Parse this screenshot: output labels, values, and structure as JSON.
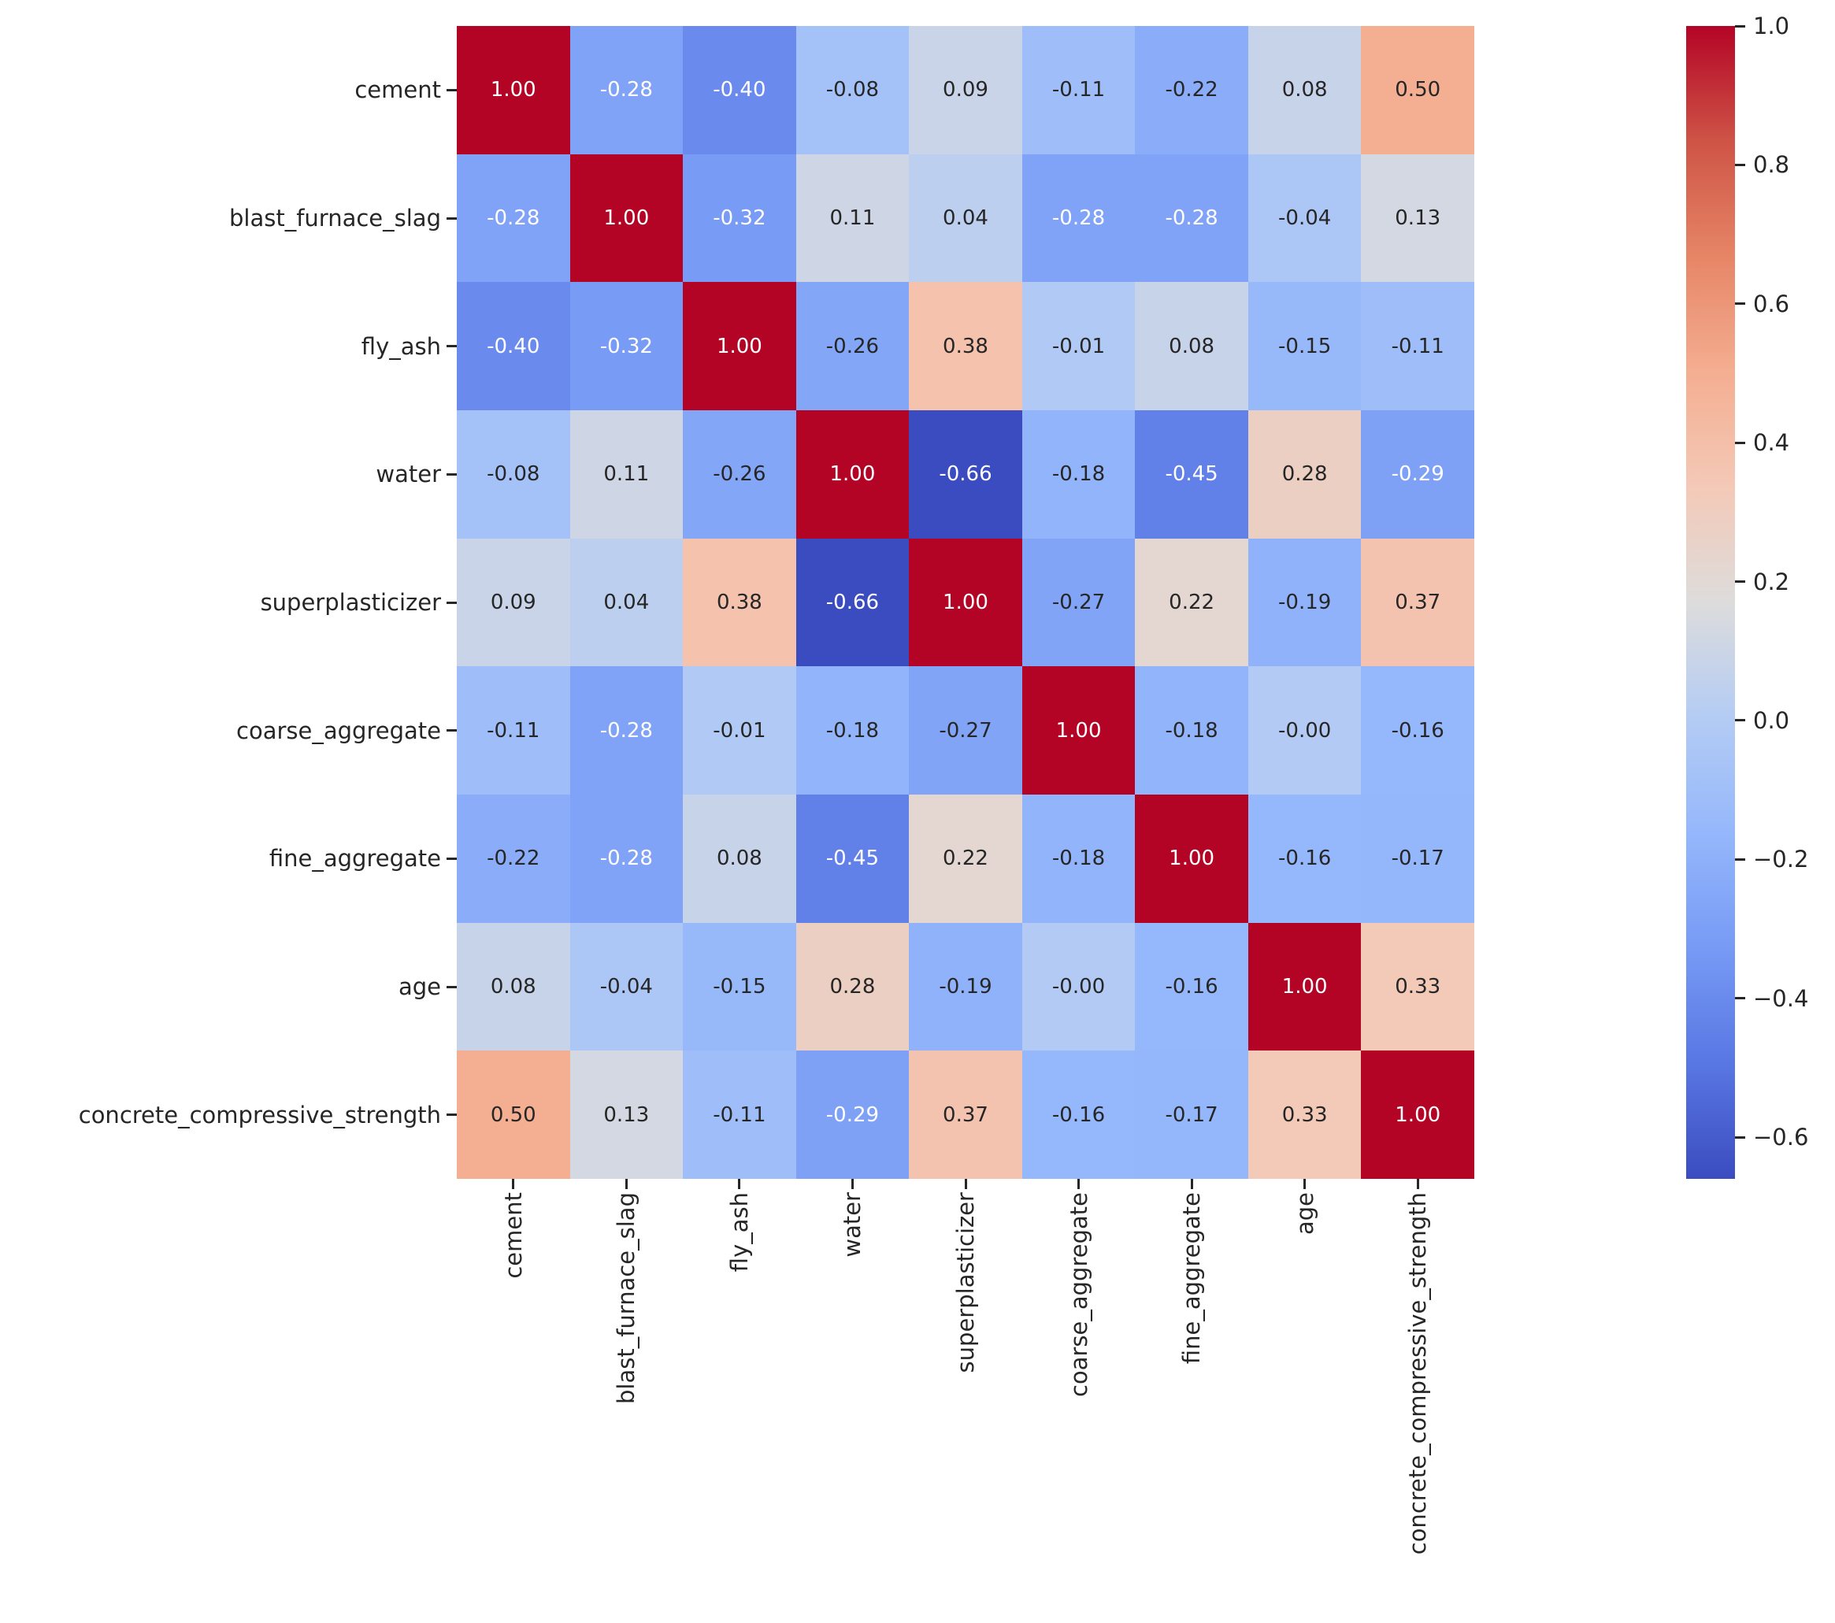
{
  "figure": {
    "background": "#ffffff",
    "annotation_text_light": "#ffffff",
    "annotation_text_dark": "#262626"
  },
  "chart_data": {
    "type": "heatmap",
    "title": "",
    "xlabel": "",
    "ylabel": "",
    "labels": [
      "cement",
      "blast_furnace_slag",
      "fly_ash",
      "water",
      "superplasticizer",
      "coarse_aggregate",
      "fine_aggregate",
      "age",
      "concrete_compressive_strength"
    ],
    "matrix": [
      [
        "1.00",
        "-0.28",
        "-0.40",
        "-0.08",
        "0.09",
        "-0.11",
        "-0.22",
        "0.08",
        "0.50"
      ],
      [
        "-0.28",
        "1.00",
        "-0.32",
        "0.11",
        "0.04",
        "-0.28",
        "-0.28",
        "-0.04",
        "0.13"
      ],
      [
        "-0.40",
        "-0.32",
        "1.00",
        "-0.26",
        "0.38",
        "-0.01",
        "0.08",
        "-0.15",
        "-0.11"
      ],
      [
        "-0.08",
        "0.11",
        "-0.26",
        "1.00",
        "-0.66",
        "-0.18",
        "-0.45",
        "0.28",
        "-0.29"
      ],
      [
        "0.09",
        "0.04",
        "0.38",
        "-0.66",
        "1.00",
        "-0.27",
        "0.22",
        "-0.19",
        "0.37"
      ],
      [
        "-0.11",
        "-0.28",
        "-0.01",
        "-0.18",
        "-0.27",
        "1.00",
        "-0.18",
        "-0.00",
        "-0.16"
      ],
      [
        "-0.22",
        "-0.28",
        "0.08",
        "-0.45",
        "0.22",
        "-0.18",
        "1.00",
        "-0.16",
        "-0.17"
      ],
      [
        "0.08",
        "-0.04",
        "-0.15",
        "0.28",
        "-0.19",
        "-0.00",
        "-0.16",
        "1.00",
        "0.33"
      ],
      [
        "0.50",
        "0.13",
        "-0.11",
        "-0.29",
        "0.37",
        "-0.16",
        "-0.17",
        "0.33",
        "1.00"
      ]
    ],
    "vmin": -0.66,
    "vmax": 1.0,
    "colormap": {
      "name": "coolwarm",
      "anchors": [
        "#3b4cc0",
        "#5977e3",
        "#779af5",
        "#95b7fb",
        "#b4ccf4",
        "#dddcdc",
        "#f4c9b7",
        "#f4ae91",
        "#e68566",
        "#ce5446",
        "#b40426"
      ]
    },
    "white_text_below": -0.275,
    "white_text_above": 0.95,
    "colorbar": {
      "position": "right",
      "tick_labels": [
        "1.0",
        "0.8",
        "0.6",
        "0.4",
        "0.2",
        "0.0",
        "−0.2",
        "−0.4",
        "−0.6"
      ],
      "tick_values": [
        1.0,
        0.8,
        0.6,
        0.4,
        0.2,
        0.0,
        -0.2,
        -0.4,
        -0.6
      ]
    },
    "grid": false,
    "legend": false
  }
}
